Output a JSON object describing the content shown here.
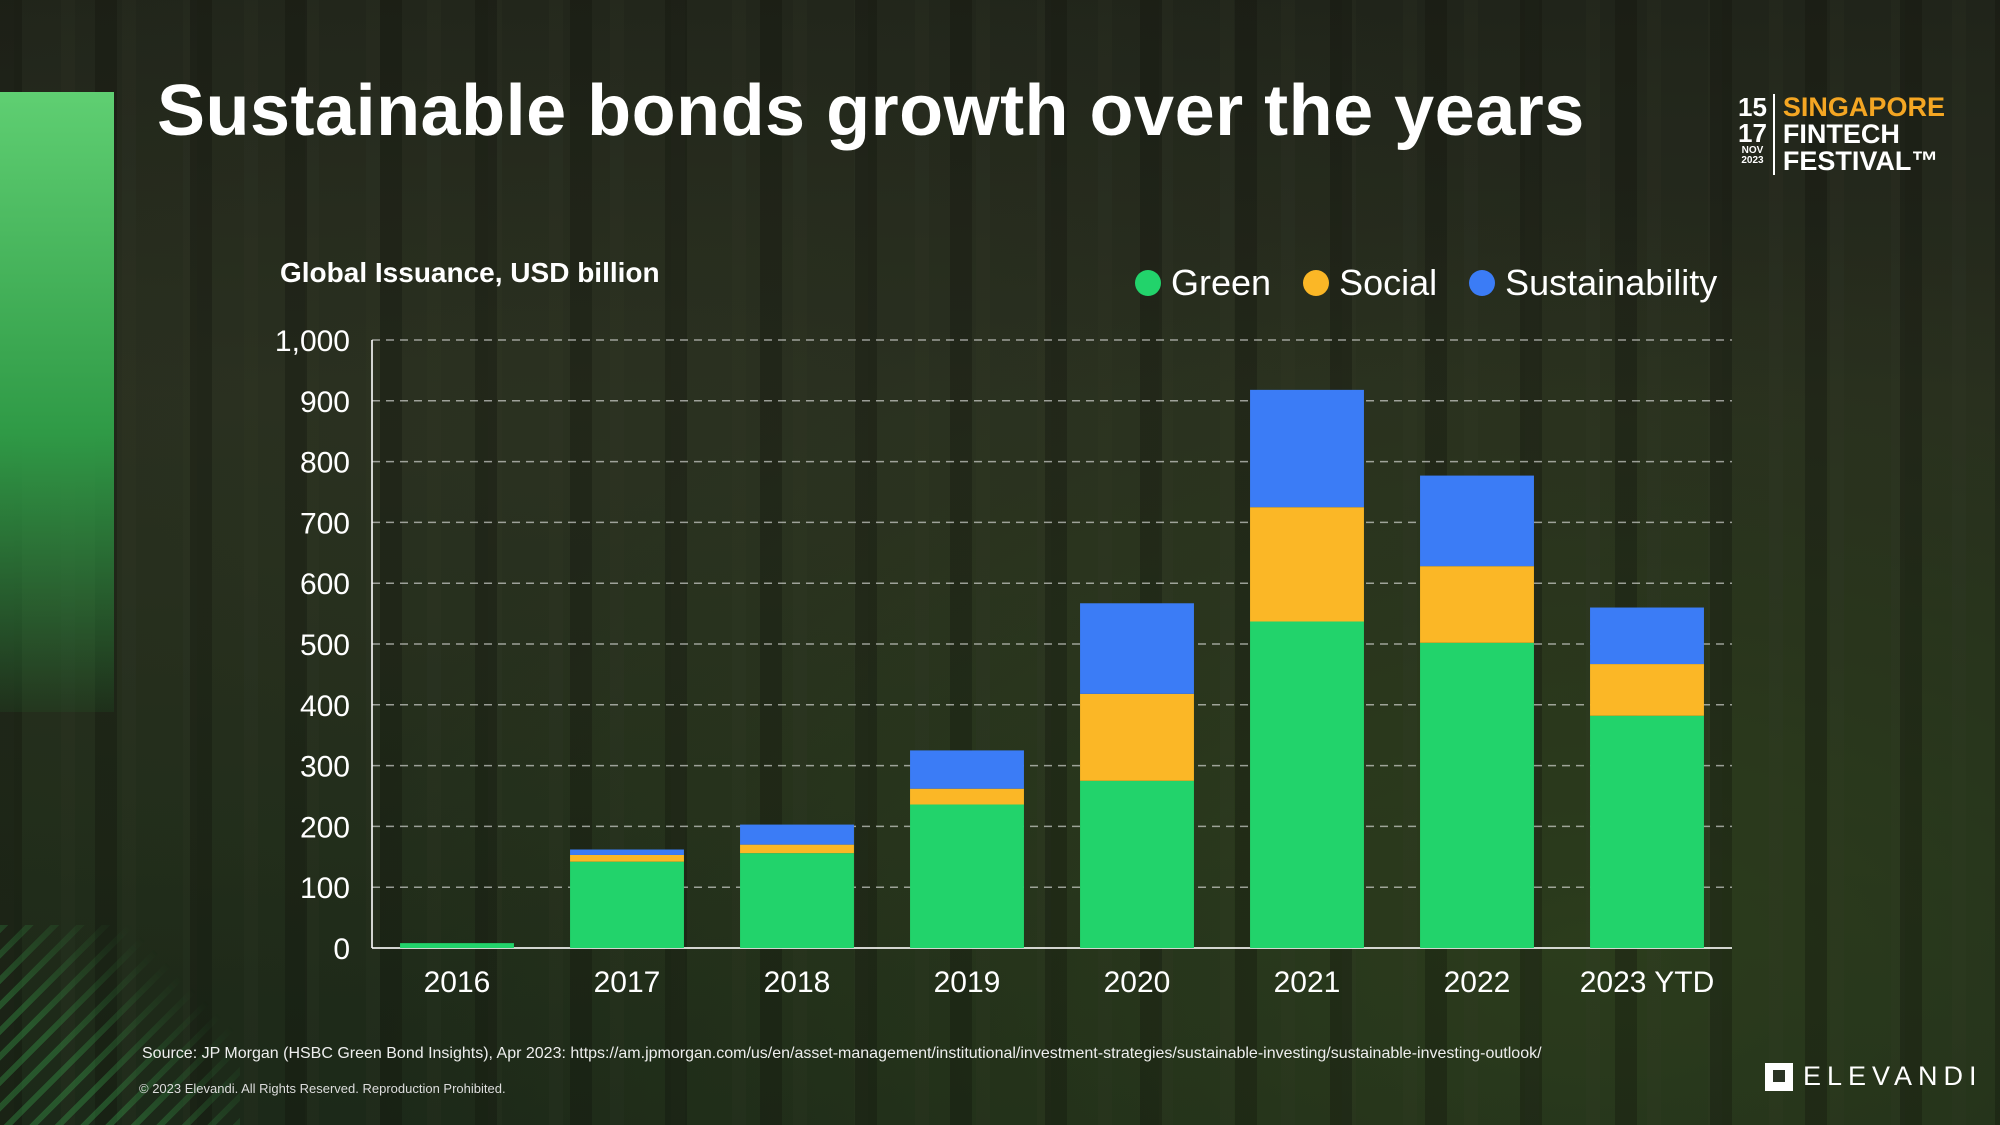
{
  "slide": {
    "title": "Sustainable bonds growth over the years",
    "source": "Source: JP Morgan (HSBC Green Bond Insights), Apr 2023: https://am.jpmorgan.com/us/en/asset-management/institutional/investment-strategies/sustainable-investing/sustainable-investing-outlook/",
    "copyright": "© 2023 Elevandi. All Rights Reserved. Reproduction Prohibited."
  },
  "logo_sff": {
    "date_start": "15",
    "date_end": "17",
    "month": "NOV",
    "year": "2023",
    "line1": "SINGAPORE",
    "line2": "FINTECH",
    "line3": "FESTIVAL™"
  },
  "logo_elevandi": {
    "text": "ELEVANDI"
  },
  "chart_data": {
    "type": "bar",
    "stacked": true,
    "ylabel": "Global Issuance, USD billion",
    "categories": [
      "2016",
      "2017",
      "2018",
      "2019",
      "2020",
      "2021",
      "2022",
      "2023 YTD"
    ],
    "ylim": [
      0,
      1000
    ],
    "yticks": [
      0,
      100,
      200,
      300,
      400,
      500,
      600,
      700,
      800,
      900,
      1000
    ],
    "ytick_labels": [
      "0",
      "100",
      "200",
      "300",
      "400",
      "500",
      "600",
      "700",
      "800",
      "900",
      "1,000"
    ],
    "grid": true,
    "legend_position": "top-right",
    "series": [
      {
        "name": "Green",
        "color": "#22d36b",
        "values": [
          8,
          142,
          156,
          236,
          275,
          537,
          502,
          382
        ]
      },
      {
        "name": "Social",
        "color": "#fbb726",
        "values": [
          0,
          11,
          14,
          26,
          143,
          188,
          126,
          85
        ]
      },
      {
        "name": "Sustainability",
        "color": "#3b7cf6",
        "values": [
          0,
          9,
          33,
          63,
          149,
          193,
          149,
          93
        ]
      }
    ]
  }
}
